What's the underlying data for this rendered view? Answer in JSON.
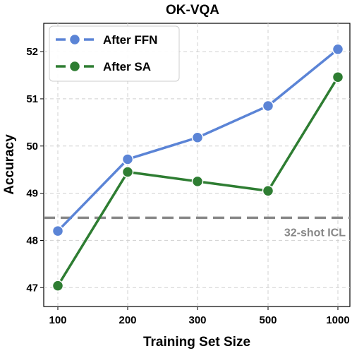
{
  "chart_data": {
    "type": "line",
    "title": "OK-VQA",
    "xlabel": "Training Set Size",
    "ylabel": "Accuracy",
    "categories": [
      "100",
      "200",
      "300",
      "500",
      "1000"
    ],
    "ylim": [
      46.6,
      52.6
    ],
    "yticks": [
      47,
      48,
      49,
      50,
      51,
      52
    ],
    "grid": true,
    "legend_position": "top-left",
    "series": [
      {
        "name": "After FFN",
        "color": "#5b84d6",
        "values": [
          48.2,
          49.72,
          50.18,
          50.85,
          52.05
        ]
      },
      {
        "name": "After SA",
        "color": "#2e7d32",
        "values": [
          47.04,
          49.45,
          49.25,
          49.05,
          51.46
        ]
      }
    ],
    "reference_line": {
      "label": "32-shot ICL",
      "value": 48.48,
      "color": "#888888"
    }
  }
}
